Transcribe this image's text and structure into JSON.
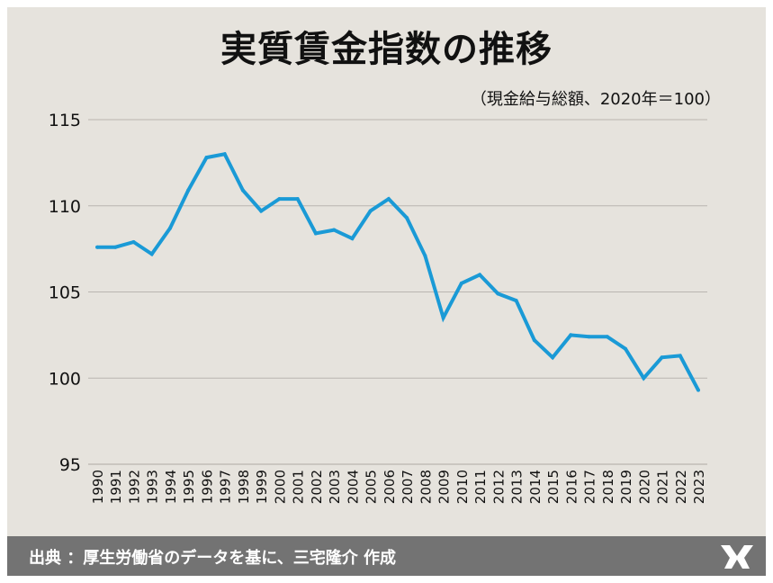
{
  "header": {
    "title": "実質賃金指数の推移",
    "subtitle": "（現金給与総額、2020年＝100）"
  },
  "footer": {
    "source": "出典 ：厚生労働省のデータを基に、三宅隆介 作成"
  },
  "colors": {
    "line": "#1a9ad6",
    "background": "#e6e3dd",
    "footer": "#737373",
    "grid": "#b9b5b0"
  },
  "chart_data": {
    "type": "line",
    "title": "実質賃金指数の推移",
    "xlabel": "",
    "ylabel": "",
    "ylim": [
      95,
      115
    ],
    "y_ticks": [
      95,
      100,
      105,
      110,
      115
    ],
    "grid": true,
    "x": [
      "1990",
      "1991",
      "1992",
      "1993",
      "1994",
      "1995",
      "1996",
      "1997",
      "1998",
      "1999",
      "2000",
      "2001",
      "2002",
      "2003",
      "2004",
      "2005",
      "2006",
      "2007",
      "2008",
      "2009",
      "2010",
      "2011",
      "2012",
      "2013",
      "2014",
      "2015",
      "2016",
      "2017",
      "2018",
      "2019",
      "2020",
      "2021",
      "2022",
      "2023"
    ],
    "series": [
      {
        "values": [
          107.6,
          107.6,
          107.9,
          107.2,
          108.7,
          110.9,
          112.8,
          113.0,
          110.9,
          109.7,
          110.4,
          110.4,
          108.4,
          108.6,
          108.1,
          109.7,
          110.4,
          109.3,
          107.1,
          103.5,
          105.5,
          106.0,
          104.9,
          104.5,
          102.2,
          101.2,
          102.5,
          102.4,
          102.4,
          101.7,
          100.0,
          101.2,
          101.3,
          99.3
        ]
      }
    ]
  }
}
